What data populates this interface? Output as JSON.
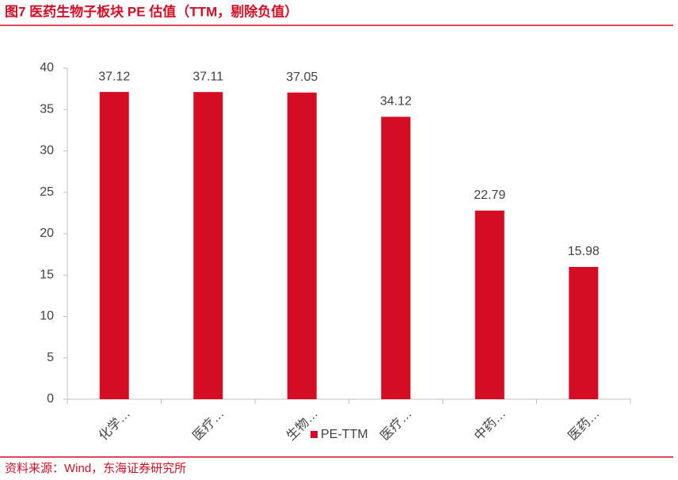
{
  "chart_data": {
    "type": "bar",
    "title": "图7  医药生物子板块 PE 估值（TTM，剔除负值）",
    "source": "资料来源：Wind，东海证券研究所",
    "categories": [
      "化学…",
      "医疗…",
      "生物…",
      "医疗…",
      "中药…",
      "医药…"
    ],
    "series": [
      {
        "name": "PE-TTM",
        "color": "#d40d24",
        "values": [
          37.12,
          37.11,
          37.05,
          34.12,
          22.79,
          15.98
        ]
      }
    ],
    "ylim": [
      0,
      40
    ],
    "yticks": [
      0,
      5,
      10,
      15,
      20,
      25,
      30,
      35,
      40
    ],
    "grid": false
  }
}
